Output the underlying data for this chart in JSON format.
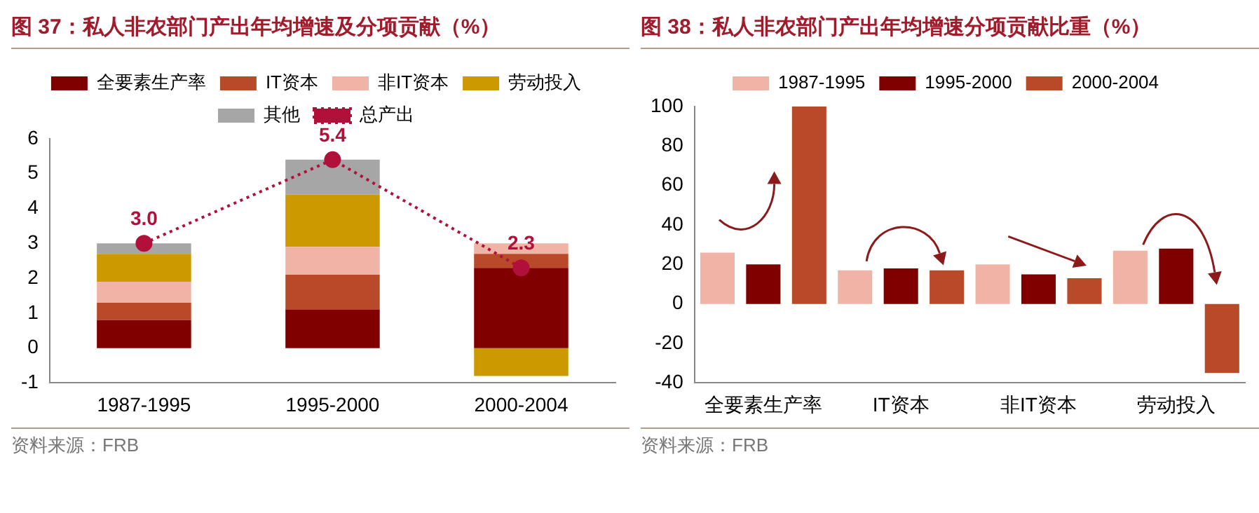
{
  "chart_data": [
    {
      "type": "bar",
      "title": "图 37：私人非农部门产出年均增速及分项贡献（%）",
      "stacked": true,
      "categories": [
        "1987-1995",
        "1995-2000",
        "2000-2004"
      ],
      "series": [
        {
          "name": "全要素生产率",
          "color": "#800000",
          "values": [
            0.8,
            1.1,
            2.3
          ]
        },
        {
          "name": "IT资本",
          "color": "#b84a2a",
          "values": [
            0.5,
            1.0,
            0.4
          ]
        },
        {
          "name": "非IT资本",
          "color": "#f0b4a6",
          "values": [
            0.6,
            0.8,
            0.3
          ]
        },
        {
          "name": "劳动投入",
          "color": "#cc9900",
          "values": [
            0.8,
            1.5,
            -0.8
          ]
        },
        {
          "name": "其他",
          "color": "#a6a6a6",
          "values": [
            0.3,
            1.0,
            null
          ]
        },
        {
          "name": "总产出",
          "type": "line",
          "color": "#b0103a",
          "line_style": "dotted",
          "marker": "circle",
          "values": [
            3.0,
            5.4,
            2.3
          ],
          "value_labels": [
            "3.0",
            "5.4",
            "2.3"
          ]
        }
      ],
      "ylim": [
        -1,
        6
      ],
      "yticks": [
        -1,
        0,
        1,
        2,
        3,
        4,
        5,
        6
      ],
      "grid": false,
      "legend": "top",
      "annotations": [
        "资料来源：FRB"
      ]
    },
    {
      "type": "bar",
      "title": "图 38：私人非农部门产出年均增速分项贡献比重（%）",
      "categories": [
        "全要素生产率",
        "IT资本",
        "非IT资本",
        "劳动投入"
      ],
      "series": [
        {
          "name": "1987-1995",
          "color": "#f0b4a6",
          "values": [
            26,
            17,
            20,
            27
          ]
        },
        {
          "name": "1995-2000",
          "color": "#800000",
          "values": [
            20,
            18,
            15,
            28
          ]
        },
        {
          "name": "2000-2004",
          "color": "#b84a2a",
          "values": [
            100,
            17,
            13,
            -35
          ]
        }
      ],
      "ylim": [
        -40,
        100
      ],
      "yticks": [
        -40,
        -20,
        0,
        20,
        40,
        60,
        80,
        100
      ],
      "grid": false,
      "legend": "top",
      "annotations": [
        "资料来源：FRB"
      ]
    }
  ]
}
